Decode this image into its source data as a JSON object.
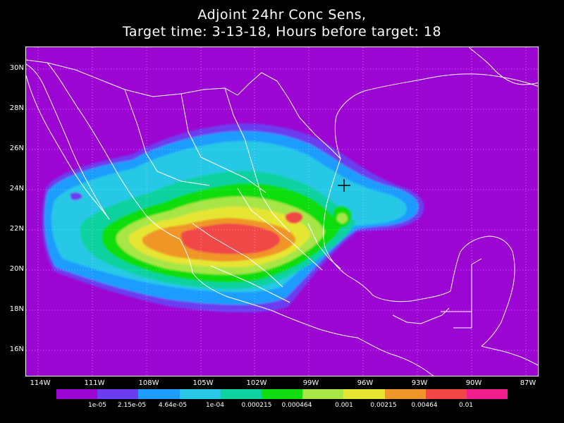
{
  "title": {
    "line1": "Adjoint 24hr Conc Sens,",
    "line2": "Target time: 3-13-18, Hours before target: 18"
  },
  "map": {
    "background_color": "#9c06d2",
    "grid_style": "dotted",
    "lat_labels": [
      "30N",
      "28N",
      "26N",
      "24N",
      "22N",
      "20N",
      "18N",
      "16N"
    ],
    "lon_labels": [
      "114W",
      "111W",
      "108W",
      "105W",
      "102W",
      "99W",
      "96W",
      "93W",
      "90W",
      "87W"
    ],
    "target_marker": {
      "symbol": "+",
      "lat": 24.2,
      "lon": -96.8
    }
  },
  "legend": {
    "colors": [
      "#9c06d2",
      "#6c3cf0",
      "#1e9cff",
      "#28c8e6",
      "#10d2a0",
      "#10dc10",
      "#a8e646",
      "#e6e632",
      "#f09628",
      "#f04646",
      "#f01e8c"
    ],
    "labels": [
      "1e-05",
      "2.15e-05",
      "4.64e-05",
      "1e-04",
      "0.000215",
      "0.000464",
      "0.001",
      "0.00215",
      "0.00464",
      "0.01"
    ]
  }
}
